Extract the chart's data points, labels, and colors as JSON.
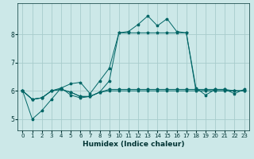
{
  "title": "",
  "xlabel": "Humidex (Indice chaleur)",
  "bg_color": "#cce8e8",
  "grid_color": "#a8cccc",
  "line_color": "#006666",
  "x_values": [
    0,
    1,
    2,
    3,
    4,
    5,
    6,
    7,
    8,
    9,
    10,
    11,
    12,
    13,
    14,
    15,
    16,
    17,
    18,
    19,
    20,
    21,
    22,
    23
  ],
  "series": [
    [
      6.0,
      5.0,
      5.3,
      5.7,
      6.1,
      6.25,
      6.3,
      5.9,
      6.35,
      6.8,
      8.05,
      8.1,
      8.35,
      8.65,
      8.3,
      8.55,
      8.1,
      8.05,
      6.1,
      5.85,
      6.05,
      6.05,
      5.9,
      6.05
    ],
    [
      6.0,
      5.7,
      5.75,
      6.0,
      6.1,
      5.85,
      5.75,
      5.8,
      5.95,
      6.0,
      6.0,
      6.0,
      6.0,
      6.0,
      6.0,
      6.0,
      6.0,
      6.0,
      6.0,
      6.0,
      6.0,
      6.0,
      6.0,
      6.0
    ],
    [
      6.0,
      5.7,
      5.75,
      6.0,
      6.05,
      5.95,
      5.8,
      5.8,
      5.95,
      6.35,
      8.05,
      8.05,
      8.05,
      8.05,
      8.05,
      8.05,
      8.05,
      8.05,
      6.0,
      6.0,
      6.0,
      6.0,
      6.0,
      6.0
    ],
    [
      6.0,
      5.7,
      5.75,
      6.0,
      6.05,
      5.95,
      5.8,
      5.8,
      5.95,
      6.05,
      6.05,
      6.05,
      6.05,
      6.05,
      6.05,
      6.05,
      6.05,
      6.05,
      6.05,
      6.05,
      6.05,
      6.05,
      6.0,
      6.0
    ]
  ],
  "ylim": [
    4.6,
    9.1
  ],
  "yticks": [
    5,
    6,
    7,
    8
  ],
  "xlim": [
    -0.5,
    23.5
  ],
  "xticks": [
    0,
    1,
    2,
    3,
    4,
    5,
    6,
    7,
    8,
    9,
    10,
    11,
    12,
    13,
    14,
    15,
    16,
    17,
    18,
    19,
    20,
    21,
    22,
    23
  ],
  "xlabel_fontsize": 6.5,
  "tick_fontsize": 5,
  "linewidth": 0.7,
  "markersize": 2.5
}
